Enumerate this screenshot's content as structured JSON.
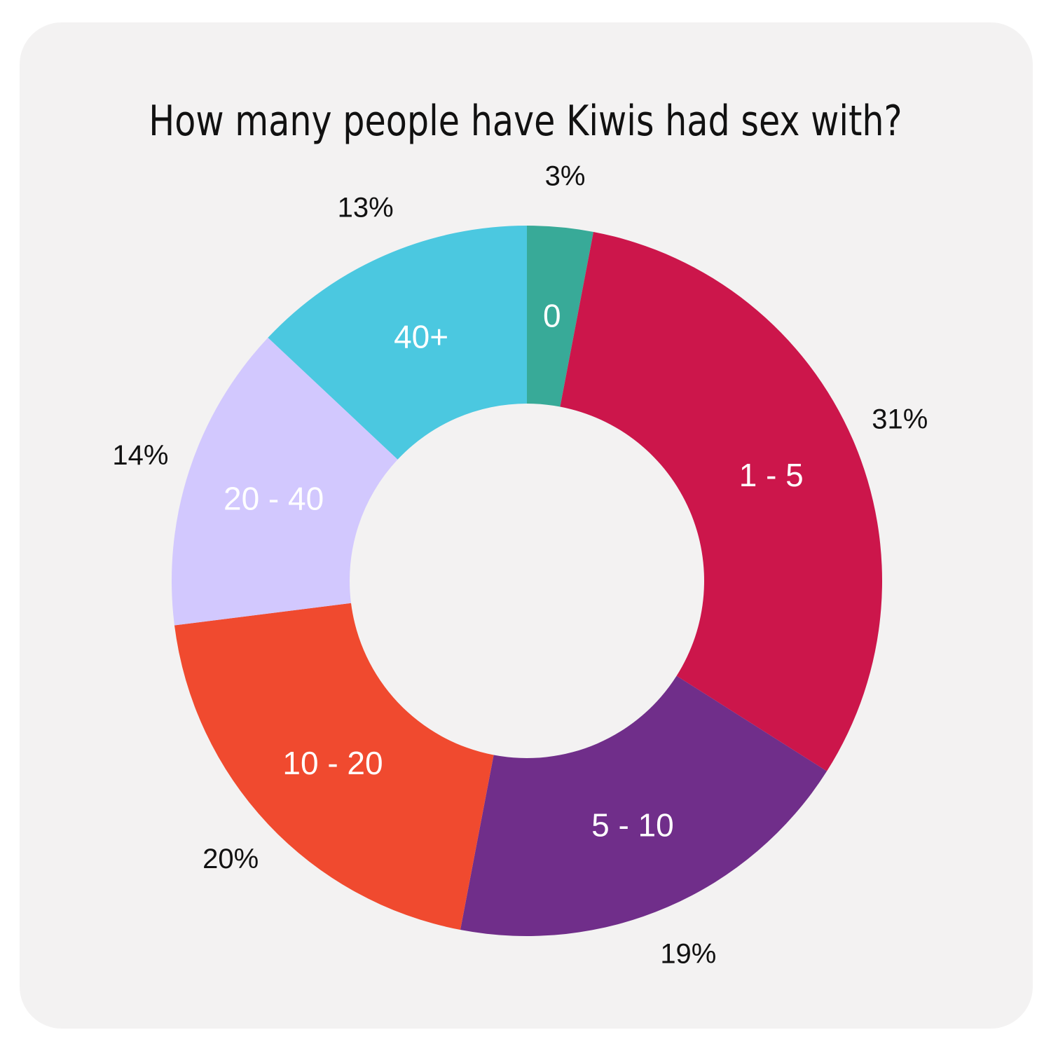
{
  "colors": {
    "background": "#f3f2f2",
    "title": "#111111",
    "inside_label": "#ffffff",
    "outside_label": "#111111"
  },
  "chart_data": {
    "type": "pie",
    "variant": "donut",
    "title": "How many people have Kiwis had sex with?",
    "categories": [
      "0",
      "1 - 5",
      "5 - 10",
      "10 - 20",
      "20 - 40",
      "40+"
    ],
    "values": [
      3,
      31,
      19,
      20,
      14,
      13
    ],
    "value_labels": [
      "3%",
      "31%",
      "19%",
      "20%",
      "14%",
      "13%"
    ],
    "colors": [
      "#38aa98",
      "#cc164b",
      "#702e8a",
      "#f04a2f",
      "#d2c8fe",
      "#4bc8e0"
    ],
    "start": "top",
    "direction": "clockwise",
    "legend": "none"
  }
}
